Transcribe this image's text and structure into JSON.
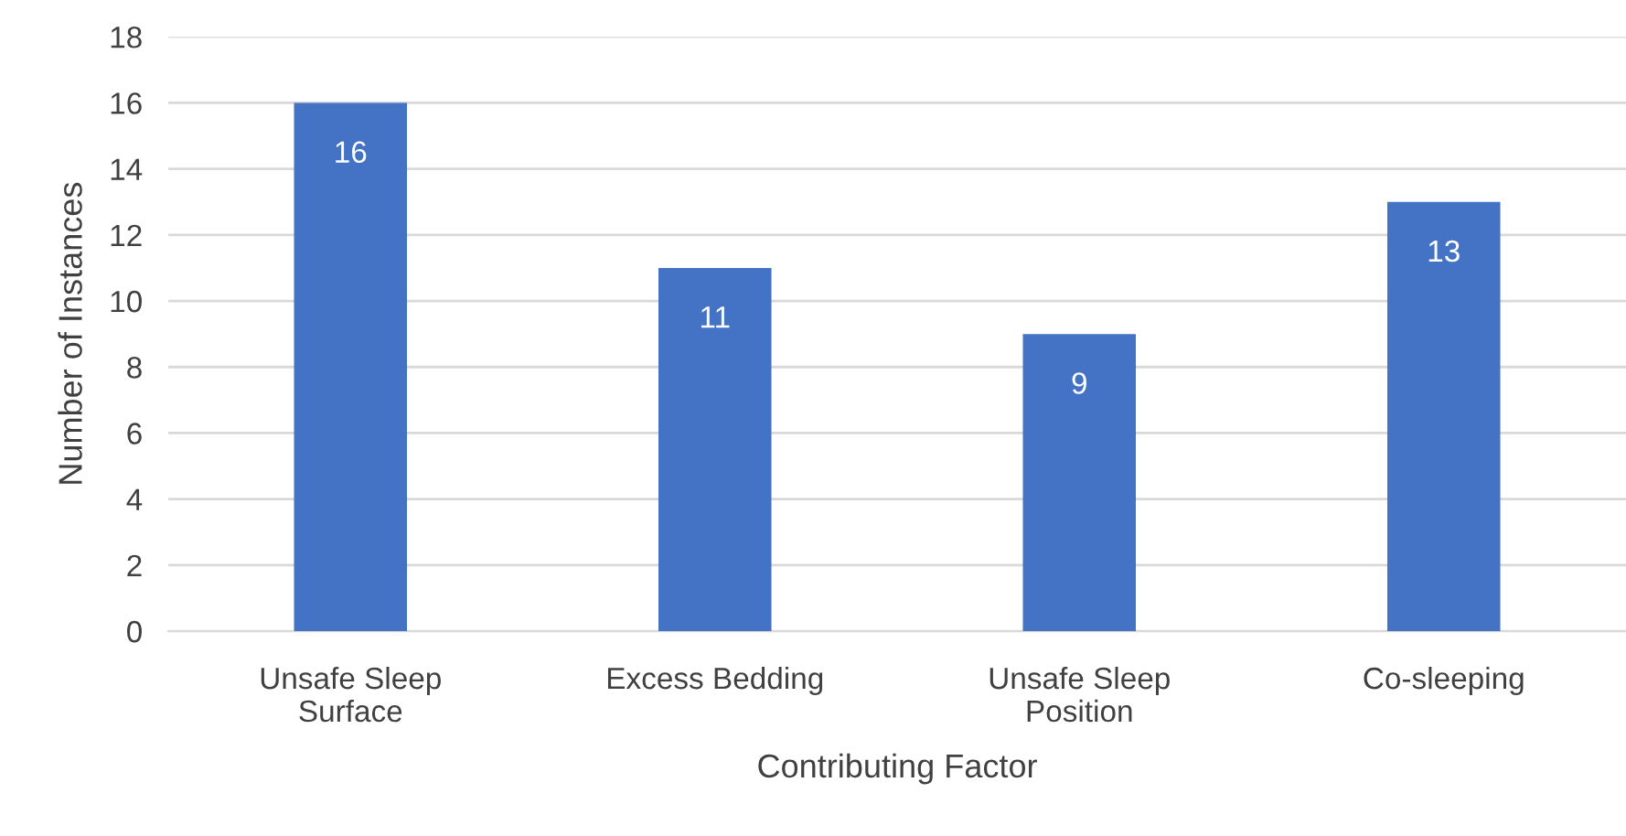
{
  "chart_data": {
    "type": "bar",
    "xlabel": "Contributing Factor",
    "ylabel": "Number of Instances",
    "categories": [
      "Unsafe Sleep\nSurface",
      "Excess Bedding",
      "Unsafe Sleep\nPosition",
      "Co-sleeping"
    ],
    "values": [
      16,
      11,
      9,
      13
    ],
    "color": "#4472c4",
    "ylim": [
      0,
      18
    ],
    "yticks": [
      0,
      2,
      4,
      6,
      8,
      10,
      12,
      14,
      16,
      18
    ],
    "grid": "y",
    "data_labels": true,
    "legend": false
  }
}
